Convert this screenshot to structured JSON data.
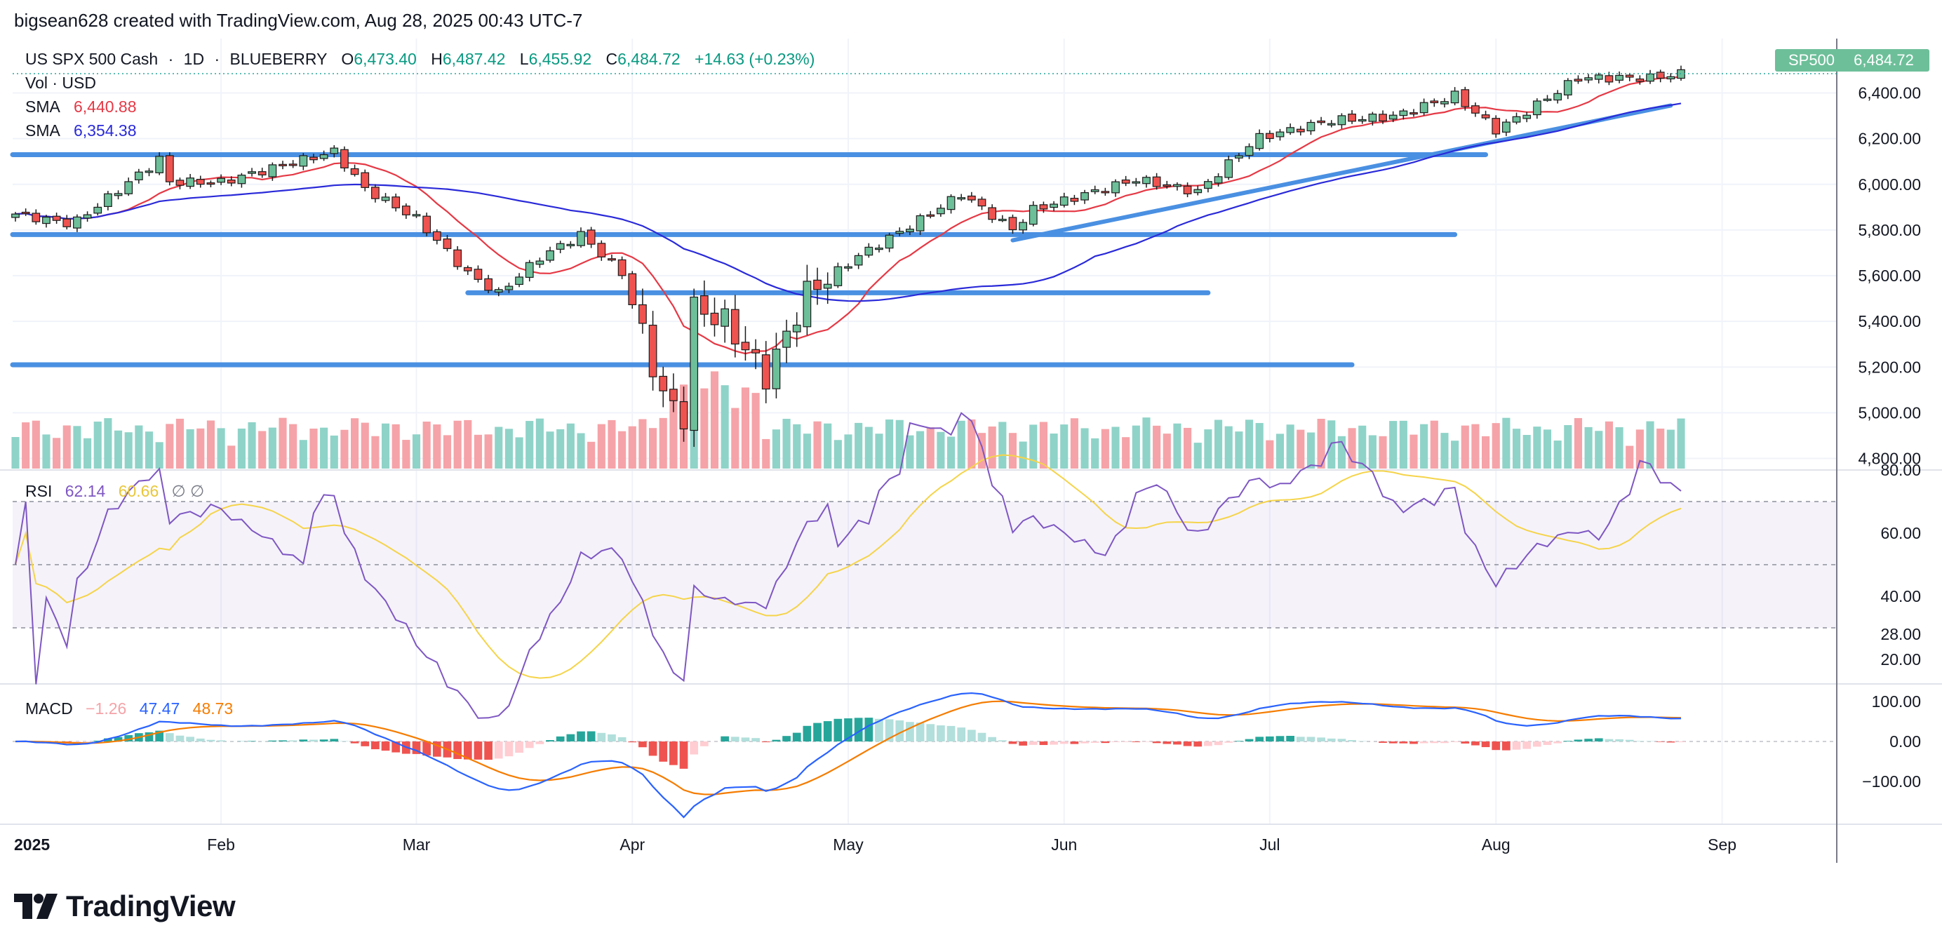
{
  "header": {
    "credit": "bigsean628 created with TradingView.com, Aug 28, 2025 00:43 UTC-7"
  },
  "legend": {
    "symbol": "US SPX 500 Cash",
    "interval": "1D",
    "source": "BLUEBERRY",
    "open_label": "O",
    "open": "6,473.40",
    "high_label": "H",
    "high": "6,487.42",
    "low_label": "L",
    "low": "6,455.92",
    "close_label": "C",
    "close": "6,484.72",
    "change": "+14.63 (+0.23%)",
    "vol": "Vol · USD",
    "sma_label": "SMA",
    "sma_fast": "6,440.88",
    "sma_slow": "6,354.38"
  },
  "price_tag": {
    "symbol": "SP500",
    "value": "6,484.72"
  },
  "rsi_legend": {
    "name": "RSI",
    "value": "62.14",
    "ma": "60.66",
    "extra": "∅ ∅"
  },
  "macd_legend": {
    "name": "MACD",
    "hist": "−1.26",
    "macd": "47.47",
    "signal": "48.73"
  },
  "colors": {
    "up": "#26a69a",
    "down": "#ef5350",
    "up_fill": "#6dbf99",
    "down_fill": "#ef5350",
    "vol_up": "#8fd3c8",
    "vol_down": "#f5a3a8",
    "sma_fast": "#e53945",
    "sma_slow": "#2a2ad9",
    "trend": "#4a90e2",
    "rsi": "#7e57c2",
    "rsi_ma": "#f5d44a",
    "macd": "#2962ff",
    "signal": "#f57c00"
  },
  "logo": {
    "text": "TradingView"
  },
  "chart_data": {
    "type": "candlestick",
    "title": "US SPX 500 Cash · 1D · BLUEBERRY",
    "x_labels": [
      "2025",
      "Feb",
      "Mar",
      "Apr",
      "May",
      "Jun",
      "Jul",
      "Aug",
      "Sep"
    ],
    "price_ticks": [
      "6,400.00",
      "6,200.00",
      "6,000.00",
      "5,800.00",
      "5,600.00",
      "5,400.00",
      "5,200.00",
      "5,000.00",
      "4,800.00"
    ],
    "price_tick_values": [
      6400,
      6200,
      6000,
      5800,
      5600,
      5400,
      5200,
      5000,
      4800
    ],
    "rsi_ticks": [
      "80.00",
      "60.00",
      "40.00",
      "28.00",
      "20.00"
    ],
    "rsi_tick_values": [
      80,
      60,
      40,
      28,
      20
    ],
    "macd_ticks": [
      "100.00",
      "0.00",
      "−100.00"
    ],
    "macd_tick_values": [
      100,
      0,
      -100
    ],
    "horizontal_levels": [
      {
        "from": "2025-01-01",
        "to": "2025-07-31",
        "price": 6130
      },
      {
        "from": "2025-01-01",
        "to": "2025-07-27",
        "price": 5780
      },
      {
        "from": "2025-03-10",
        "to": "2025-06-23",
        "price": 5525
      },
      {
        "from": "2025-01-01",
        "to": "2025-07-14",
        "price": 5210
      }
    ],
    "trend_lines": [
      {
        "from_date": "2025-05-23",
        "from_price": 5755,
        "to_date": "2025-08-26",
        "to_price": 6345
      }
    ],
    "key_closes": [
      {
        "date": "2025-02-19",
        "close": 6144
      },
      {
        "date": "2025-03-13",
        "close": 5522
      },
      {
        "date": "2025-04-08",
        "close": 4982
      },
      {
        "date": "2025-05-16",
        "close": 5958
      },
      {
        "date": "2025-06-30",
        "close": 6205
      },
      {
        "date": "2025-08-01",
        "close": 6238
      },
      {
        "date": "2025-08-27",
        "close": 6484.72
      }
    ]
  }
}
